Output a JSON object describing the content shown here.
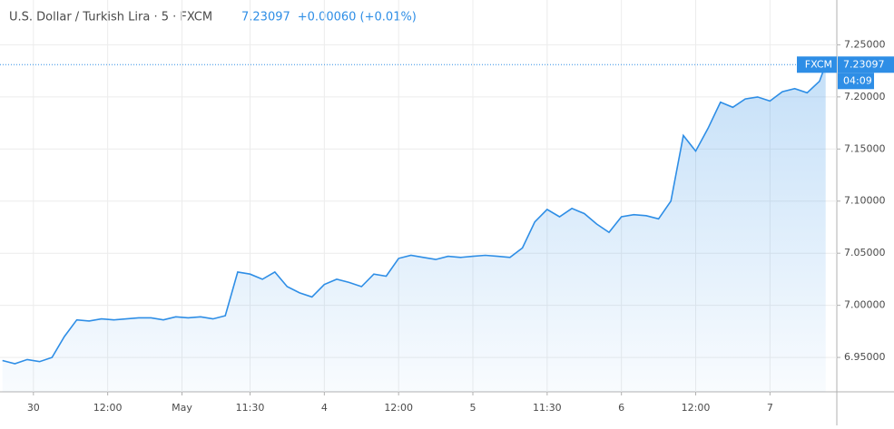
{
  "header": {
    "symbol": "U.S. Dollar / Turkish Lira · 5 · FXCM",
    "change": "+0.00060 (+0.01%)",
    "countdown": "04:09"
  },
  "chart_data": {
    "type": "area",
    "last_price": 7.23097,
    "last_price_label": "7.23097",
    "xlim": [
      -5.4,
      129.8
    ],
    "ylim": [
      6.917,
      7.293
    ],
    "xticks": [
      {
        "value": 0,
        "label": "30"
      },
      {
        "value": 12,
        "label": "12:00"
      },
      {
        "value": 24,
        "label": "May"
      },
      {
        "value": 35,
        "label": "11:30"
      },
      {
        "value": 47,
        "label": "4"
      },
      {
        "value": 59,
        "label": "12:00"
      },
      {
        "value": 71,
        "label": "5"
      },
      {
        "value": 83,
        "label": "11:30"
      },
      {
        "value": 95,
        "label": "6"
      },
      {
        "value": 107,
        "label": "12:00"
      },
      {
        "value": 119,
        "label": "7"
      }
    ],
    "yticks": [
      {
        "value": 6.95,
        "label": "6.95000"
      },
      {
        "value": 7.0,
        "label": "7.00000"
      },
      {
        "value": 7.05,
        "label": "7.05000"
      },
      {
        "value": 7.1,
        "label": "7.10000"
      },
      {
        "value": 7.15,
        "label": "7.15000"
      },
      {
        "value": 7.2,
        "label": "7.20000"
      },
      {
        "value": 7.25,
        "label": "7.25000"
      }
    ],
    "grid": true,
    "series": [
      {
        "name": "FXCM",
        "color": "#2e8ee6",
        "x": [
          -5,
          -3,
          -1,
          1,
          3,
          5,
          7,
          9,
          11,
          13,
          15,
          17,
          19,
          21,
          23,
          25,
          27,
          29,
          31,
          33,
          35,
          37,
          39,
          41,
          43,
          45,
          47,
          49,
          51,
          53,
          55,
          57,
          59,
          61,
          63,
          65,
          67,
          69,
          71,
          73,
          75,
          77,
          79,
          81,
          83,
          85,
          87,
          89,
          91,
          93,
          95,
          97,
          99,
          101,
          103,
          105,
          107,
          109,
          111,
          113,
          115,
          117,
          119,
          121,
          123,
          125,
          127,
          128
        ],
        "values": [
          6.947,
          6.944,
          6.948,
          6.946,
          6.95,
          6.97,
          6.986,
          6.985,
          6.987,
          6.986,
          6.987,
          6.988,
          6.988,
          6.986,
          6.989,
          6.988,
          6.989,
          6.987,
          6.99,
          7.032,
          7.03,
          7.025,
          7.032,
          7.018,
          7.012,
          7.008,
          7.02,
          7.025,
          7.022,
          7.018,
          7.03,
          7.028,
          7.045,
          7.048,
          7.046,
          7.044,
          7.047,
          7.046,
          7.047,
          7.048,
          7.047,
          7.046,
          7.055,
          7.08,
          7.092,
          7.085,
          7.093,
          7.088,
          7.078,
          7.07,
          7.085,
          7.087,
          7.086,
          7.083,
          7.1,
          7.163,
          7.148,
          7.17,
          7.195,
          7.19,
          7.198,
          7.2,
          7.196,
          7.205,
          7.208,
          7.204,
          7.215,
          7.231
        ]
      }
    ]
  }
}
